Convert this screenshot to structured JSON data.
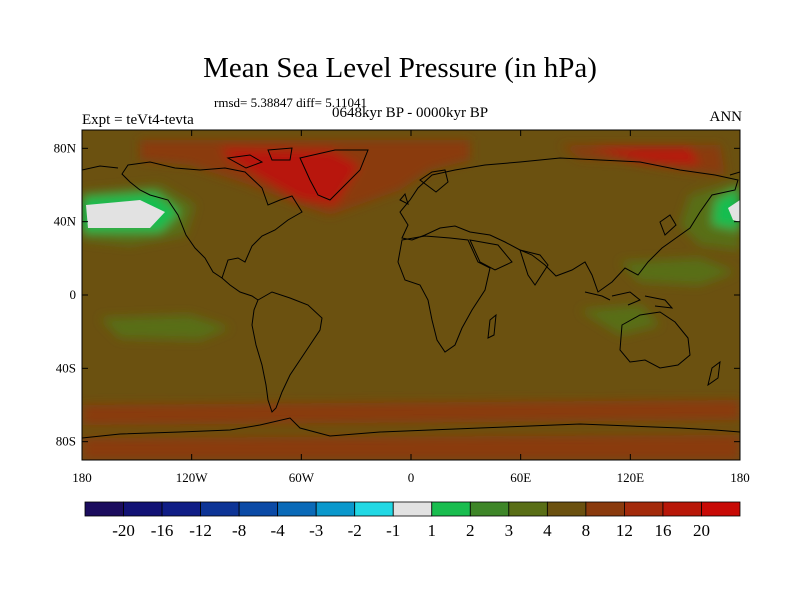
{
  "title": "Mean Sea Level Pressure (in hPa)",
  "stats": "rmsd= 5.38847 diff= 5.11041",
  "period": "0648kyr BP - 0000kyr BP",
  "experiment": "Expt = teVt4-tevta",
  "season": "ANN",
  "map": {
    "projection": "cylindrical-equidistant",
    "lon_range": [
      -180,
      180
    ],
    "lat_range": [
      -90,
      90
    ],
    "background_level_color": "#6b5110",
    "lat_ticks": [
      {
        "label": "80N",
        "lat": 80
      },
      {
        "label": "40N",
        "lat": 40
      },
      {
        "label": "0",
        "lat": 0
      },
      {
        "label": "40S",
        "lat": -40
      },
      {
        "label": "80S",
        "lat": -80
      }
    ],
    "lon_ticks": [
      {
        "label": "180",
        "lon": -180
      },
      {
        "label": "120W",
        "lon": -120
      },
      {
        "label": "60W",
        "lon": -60
      },
      {
        "label": "0",
        "lon": 0
      },
      {
        "label": "60E",
        "lon": 60
      },
      {
        "label": "120E",
        "lon": 120
      },
      {
        "label": "180",
        "lon": 180
      }
    ]
  },
  "colorbar": {
    "colors": [
      "#1b0c5e",
      "#121275",
      "#101d86",
      "#0d3496",
      "#0b4aa6",
      "#0a6ab8",
      "#0a98cc",
      "#22d8e4",
      "#e2e2e2",
      "#19bd4f",
      "#3e8628",
      "#596e16",
      "#6b5110",
      "#8a3a0d",
      "#a32a0b",
      "#b81708",
      "#c80a06"
    ],
    "labels": [
      "-20",
      "-16",
      "-12",
      "-8",
      "-4",
      "-3",
      "-2",
      "-1",
      "1",
      "2",
      "3",
      "4",
      "8",
      "12",
      "16",
      "20"
    ]
  }
}
